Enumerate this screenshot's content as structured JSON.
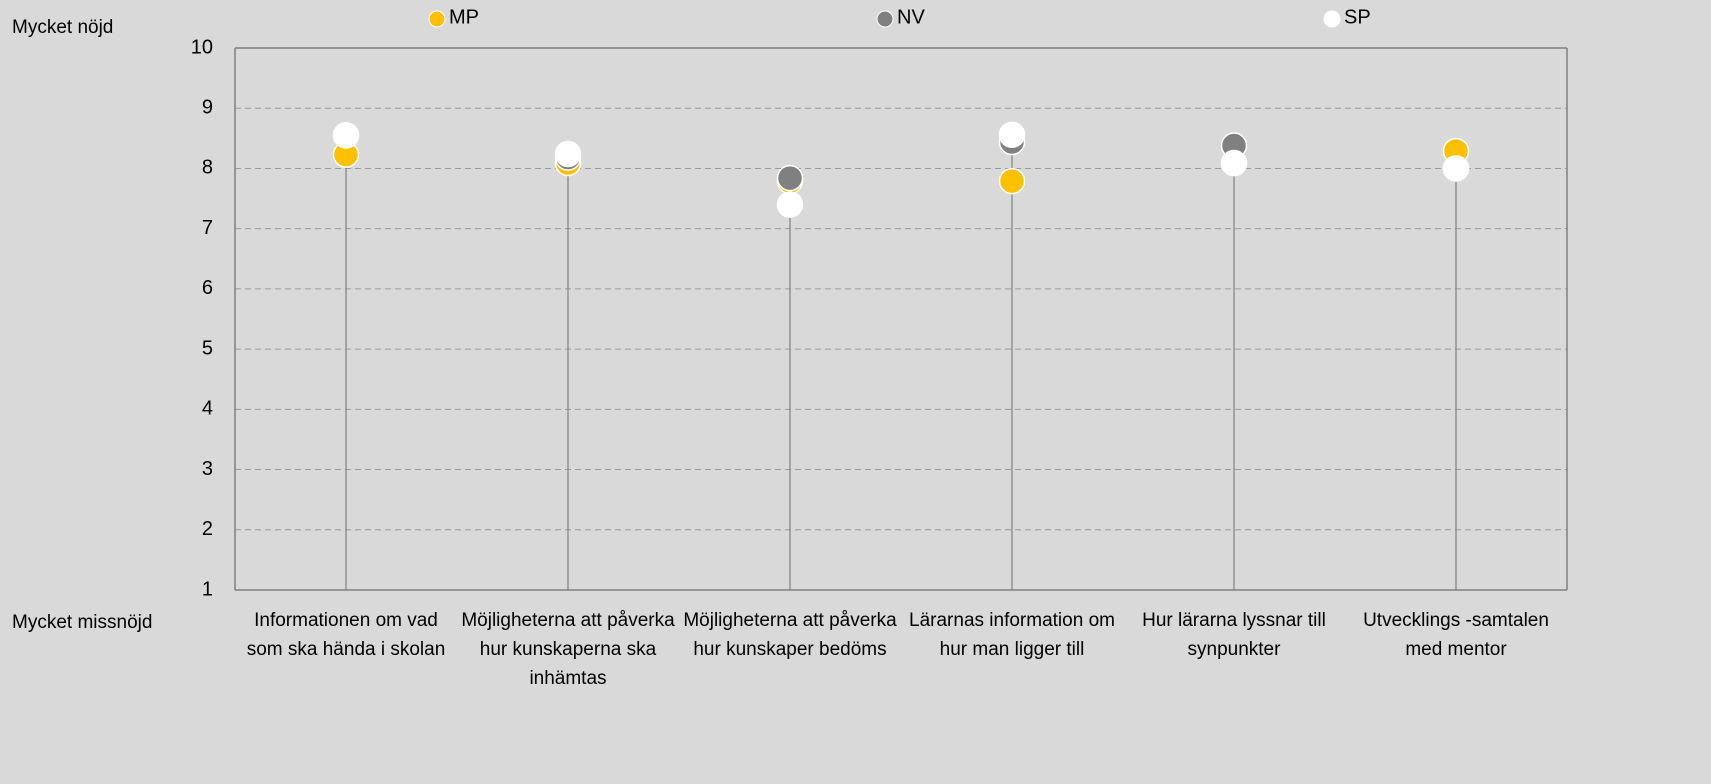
{
  "chart_data": {
    "type": "dot",
    "annotations": [
      "Mycket nöjd",
      "Mycket missnöjd"
    ],
    "categories": [
      "Informationen om vad som ska hända i skolan",
      "Möjligheterna att påverka hur kunskaperna ska inhämtas",
      "Möjligheterna att påverka hur kunskaper bedöms",
      "Lärarnas information om hur man ligger till",
      "Hur lärarna lyssnar till synpunkter",
      "Utvecklings -samtalen med mentor"
    ],
    "series": [
      {
        "name": "MP",
        "color": "#ffc000",
        "values": [
          8.23,
          8.09,
          7.79,
          7.79,
          8.09,
          8.29
        ]
      },
      {
        "name": "NV",
        "color": "#808080",
        "values": [
          8.55,
          8.18,
          7.84,
          8.44,
          8.38,
          8.0
        ]
      },
      {
        "name": "SP",
        "color": "#ffffff",
        "values": [
          8.55,
          8.24,
          7.4,
          8.56,
          8.09,
          8.0
        ]
      }
    ],
    "ylim": [
      1,
      10
    ],
    "yticks": [
      1,
      2,
      3,
      4,
      5,
      6,
      7,
      8,
      9,
      10
    ],
    "grid": true
  }
}
